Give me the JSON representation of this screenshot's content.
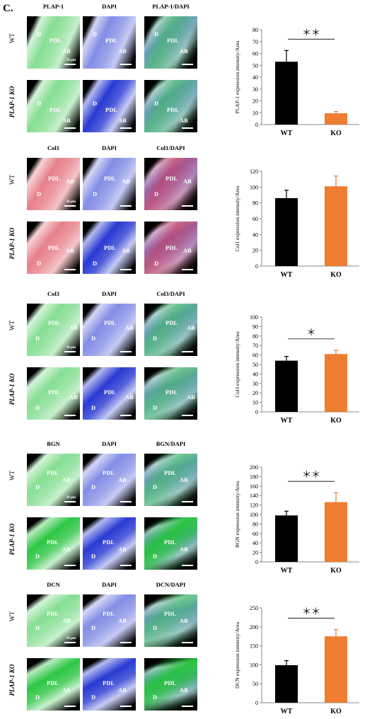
{
  "panel_letter": "C.",
  "row_labels": {
    "wt": "WT",
    "ko": "PLAP-1 KO"
  },
  "tissue_labels": {
    "d": "D",
    "pdl": "PDL",
    "ab": "AB"
  },
  "scale_bar_label": "50 μm",
  "colors": {
    "wt_bar": "#000000",
    "ko_bar": "#ed7d31",
    "green": "#22c33a",
    "red": "#d3182a",
    "blue": "#1d2fd0"
  },
  "blocks": [
    {
      "marker": "PLAP-1",
      "titles": [
        "PLAP-1",
        "DAPI",
        "PLAP-1/DAPI"
      ],
      "ylabel": "PLAP-1 expression intensity/Area",
      "sig": "＊＊"
    },
    {
      "marker": "Col1",
      "titles": [
        "Col1",
        "DAPI",
        "Col1/DAPI"
      ],
      "ylabel": "Col1 expression intensity/Area",
      "sig": ""
    },
    {
      "marker": "Col3",
      "titles": [
        "Col3",
        "DAPI",
        "Col3/DAPI"
      ],
      "ylabel": "Col3 expression intensity/Area",
      "sig": "＊"
    },
    {
      "marker": "BGN",
      "titles": [
        "BGN",
        "DAPI",
        "BGN/DAPI"
      ],
      "ylabel": "BGN expression intensity/Area",
      "sig": "＊＊"
    },
    {
      "marker": "DCN",
      "titles": [
        "DCN",
        "DAPI",
        "DCN/DAPI"
      ],
      "ylabel": "DCN expression intensity/Area",
      "sig": "＊＊"
    }
  ],
  "chart_data": [
    {
      "type": "bar",
      "categories": [
        "WT",
        "KO"
      ],
      "values": [
        53,
        9.5
      ],
      "errors": [
        9.5,
        1.5
      ],
      "ylim": [
        0,
        80
      ],
      "yticks": [
        0,
        10,
        20,
        30,
        40,
        50,
        60,
        70,
        80
      ],
      "ylabel": "PLAP-1 expression intensity/Area",
      "significance": "＊＊"
    },
    {
      "type": "bar",
      "categories": [
        "WT",
        "KO"
      ],
      "values": [
        86,
        101
      ],
      "errors": [
        10,
        13
      ],
      "ylim": [
        0,
        120
      ],
      "yticks": [
        0,
        20,
        40,
        60,
        80,
        100,
        120
      ],
      "ylabel": "Col1 expression intensity/Area",
      "significance": ""
    },
    {
      "type": "bar",
      "categories": [
        "WT",
        "KO"
      ],
      "values": [
        54,
        61
      ],
      "errors": [
        4.5,
        4
      ],
      "ylim": [
        0,
        100
      ],
      "yticks": [
        0,
        10,
        20,
        30,
        40,
        50,
        60,
        70,
        80,
        90,
        100
      ],
      "ylabel": "Col3 expression intensity/Area",
      "significance": "＊"
    },
    {
      "type": "bar",
      "categories": [
        "WT",
        "KO"
      ],
      "values": [
        98,
        126
      ],
      "errors": [
        9,
        20
      ],
      "ylim": [
        0,
        200
      ],
      "yticks": [
        0,
        20,
        40,
        60,
        80,
        100,
        120,
        140,
        160,
        180,
        200
      ],
      "ylabel": "BGN expression intensity/Area",
      "significance": "＊＊"
    },
    {
      "type": "bar",
      "categories": [
        "WT",
        "KO"
      ],
      "values": [
        99,
        175
      ],
      "errors": [
        12,
        18
      ],
      "ylim": [
        0,
        250
      ],
      "yticks": [
        0,
        50,
        100,
        150,
        200,
        250
      ],
      "ylabel": "DCN expression intensity/Area",
      "significance": "＊＊"
    }
  ]
}
